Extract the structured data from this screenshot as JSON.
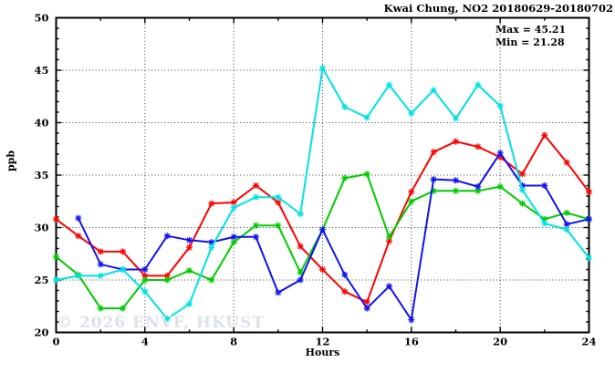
{
  "header": {
    "title": "Kwai Chung, NO2 20180629-20180702"
  },
  "annotation": {
    "max": "Max = 45.21",
    "min": "Min = 21.28"
  },
  "watermark": "© 2026 ENVF, HKUST",
  "chart_data": {
    "type": "line",
    "title": "Kwai Chung, NO2 20180629-20180702",
    "xlabel": "Hours",
    "ylabel": "ppb",
    "xlim": [
      0,
      24
    ],
    "ylim": [
      20,
      50
    ],
    "x_ticks": [
      0,
      4,
      8,
      12,
      16,
      20,
      24
    ],
    "y_ticks": [
      20,
      25,
      30,
      35,
      40,
      45,
      50
    ],
    "minor_tick_step": {
      "x": 2,
      "y": 1
    },
    "grid": "dotted lines at major ticks, mirrored inward ticks on all borders",
    "legend": "none",
    "marker": "star",
    "x": [
      0,
      1,
      2,
      3,
      4,
      5,
      6,
      7,
      8,
      9,
      10,
      11,
      12,
      13,
      14,
      15,
      16,
      17,
      18,
      19,
      20,
      21,
      22,
      23,
      24
    ],
    "series": [
      {
        "name": "red",
        "color": "#ff0000",
        "values": [
          30.8,
          29.2,
          27.7,
          27.7,
          25.4,
          25.4,
          28.1,
          32.3,
          32.4,
          34.0,
          32.4,
          28.2,
          26.0,
          23.9,
          22.9,
          28.7,
          33.4,
          37.2,
          38.2,
          37.7,
          36.7,
          35.1,
          38.8,
          36.2,
          33.4
        ]
      },
      {
        "name": "green",
        "color": "#00cc00",
        "values": [
          27.2,
          25.5,
          22.3,
          22.3,
          25.0,
          25.0,
          25.9,
          25.0,
          28.6,
          30.2,
          30.2,
          25.7,
          29.8,
          34.7,
          35.1,
          29.1,
          32.5,
          33.5,
          33.5,
          33.5,
          33.9,
          32.3,
          30.8,
          31.4,
          30.8
        ]
      },
      {
        "name": "blue",
        "color": "#1212f0",
        "values": [
          null,
          30.9,
          26.5,
          26.0,
          26.0,
          29.2,
          28.8,
          28.6,
          29.1,
          29.1,
          23.8,
          25.0,
          29.8,
          25.5,
          22.3,
          24.4,
          21.2,
          34.6,
          34.5,
          33.9,
          37.1,
          34.0,
          34.0,
          30.3,
          30.8
        ]
      },
      {
        "name": "cyan",
        "color": "#00e2e2",
        "values": [
          25.0,
          25.4,
          25.4,
          26.0,
          23.9,
          21.3,
          22.7,
          28.1,
          31.9,
          32.9,
          32.9,
          31.3,
          45.2,
          41.5,
          40.5,
          43.6,
          40.9,
          43.1,
          40.4,
          43.6,
          41.6,
          33.6,
          30.4,
          29.8,
          27.1
        ]
      }
    ],
    "stats": {
      "max": 45.21,
      "min": 21.28
    }
  }
}
